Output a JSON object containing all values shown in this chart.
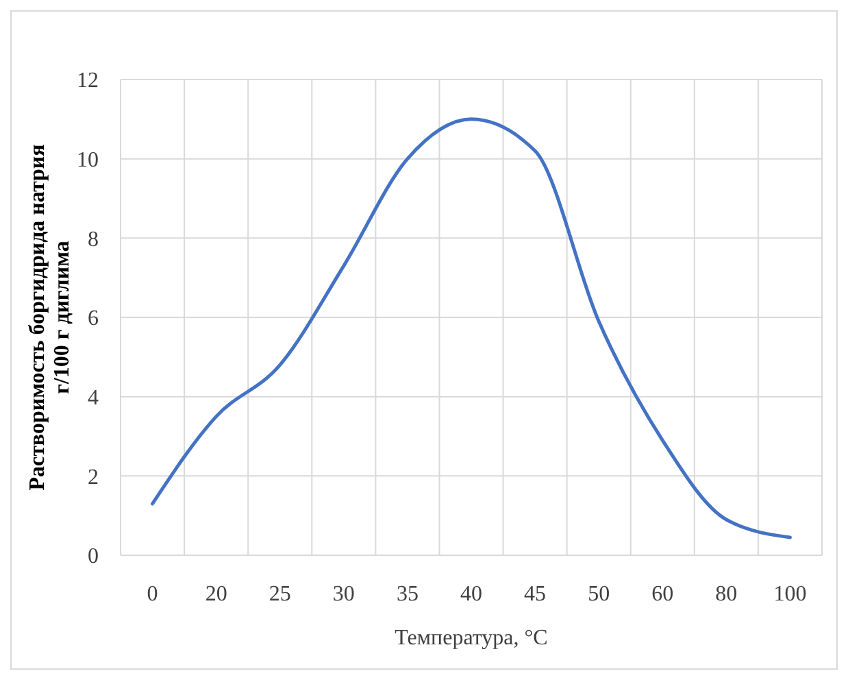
{
  "chart_data": {
    "type": "line",
    "ylabel": "Растворимость боргидрида натрия\nг/100 г диглима",
    "xlabel": "Температура, °С",
    "categories": [
      "0",
      "20",
      "25",
      "30",
      "35",
      "40",
      "45",
      "50",
      "60",
      "80",
      "100"
    ],
    "series": [
      {
        "color": "#4472c4",
        "values": [
          1.3,
          3.5,
          4.8,
          7.3,
          10.0,
          11.0,
          10.2,
          5.9,
          2.9,
          0.9,
          0.45
        ]
      }
    ],
    "ylim": [
      0,
      12
    ],
    "yticks": [
      0,
      2,
      4,
      6,
      8,
      10,
      12
    ],
    "grid": true,
    "marker": "none",
    "line_style": "solid"
  }
}
